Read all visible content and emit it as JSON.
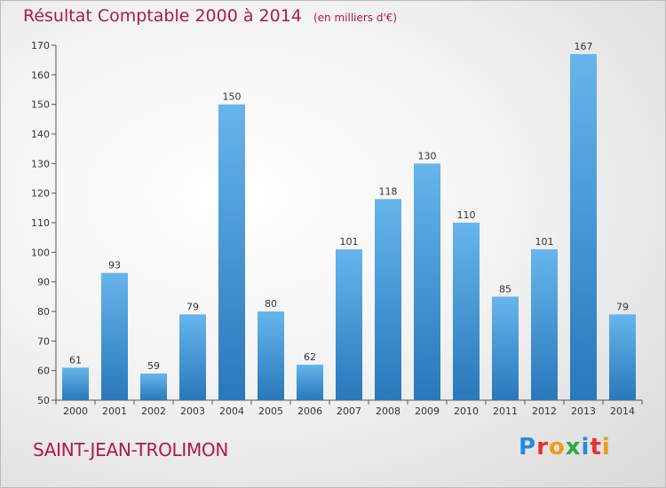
{
  "title": "Résultat Comptable 2000 à 2014",
  "subtitle": "(en milliers d'€)",
  "commune": "SAINT-JEAN-TROLIMON",
  "brand": {
    "letters": [
      {
        "ch": "P",
        "color": "#2a8ad6"
      },
      {
        "ch": "r",
        "color": "#e2352c"
      },
      {
        "ch": "o",
        "color": "#f29a1c"
      },
      {
        "ch": "x",
        "color": "#35a841"
      },
      {
        "ch": "i",
        "color": "#2a8ad6"
      },
      {
        "ch": "t",
        "color": "#e2352c"
      },
      {
        "ch": "i",
        "color": "#f29a1c"
      }
    ]
  },
  "colors": {
    "bar_light": "#66b5ec",
    "bar_dark": "#2878bb",
    "accent": "#b0174e"
  },
  "chart_data": {
    "type": "bar",
    "title": "Résultat Comptable 2000 à 2014",
    "subtitle": "(en milliers d'€)",
    "xlabel": "",
    "ylabel": "",
    "categories": [
      "2000",
      "2001",
      "2002",
      "2003",
      "2004",
      "2005",
      "2006",
      "2007",
      "2008",
      "2009",
      "2010",
      "2011",
      "2012",
      "2013",
      "2014"
    ],
    "values": [
      61,
      93,
      59,
      79,
      150,
      80,
      62,
      101,
      118,
      130,
      110,
      85,
      101,
      167,
      79
    ],
    "ylim": [
      50,
      170
    ],
    "yticks": [
      50,
      60,
      70,
      80,
      90,
      100,
      110,
      120,
      130,
      140,
      150,
      160,
      170
    ],
    "grid": false,
    "data_labels": true
  }
}
